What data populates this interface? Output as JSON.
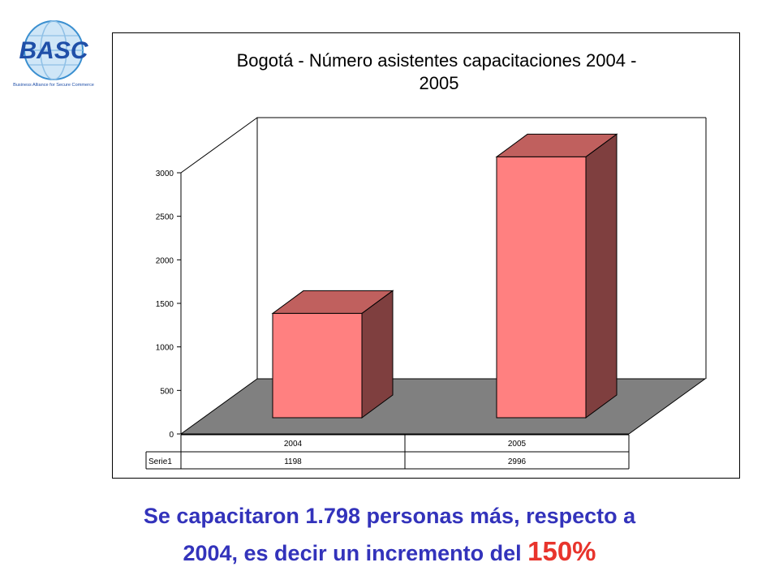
{
  "logo": {
    "wordmark": "BASC",
    "tagline": "Business Alliance for Secure Commerce",
    "globe_color": "#3a8fd0",
    "letter_color": "#1f4fa8"
  },
  "chart_data": {
    "type": "bar",
    "style": "3d",
    "title": "Bogotá - Número asistentes capacitaciones 2004 - 2005",
    "title_lines": [
      "Bogotá - Número asistentes capacitaciones 2004 -",
      "2005"
    ],
    "categories": [
      "2004",
      "2005"
    ],
    "series": [
      {
        "name": "Serie1",
        "values": [
          1198,
          2996
        ]
      }
    ],
    "ylim": [
      0,
      3000
    ],
    "yticks": [
      "0",
      "500",
      "1000",
      "1500",
      "2000",
      "2500",
      "3000"
    ],
    "xlabel": "",
    "ylabel": "",
    "data_table": true,
    "colors": {
      "bar_front": "#ff8080",
      "bar_top": "#c0605e",
      "bar_side": "#7f3f3f",
      "floor": "#808080"
    }
  },
  "caption": {
    "line1": "Se capacitaron 1.798 personas más, respecto a",
    "line2_text": "2004, es decir un incremento del ",
    "line2_highlight": "150%"
  }
}
